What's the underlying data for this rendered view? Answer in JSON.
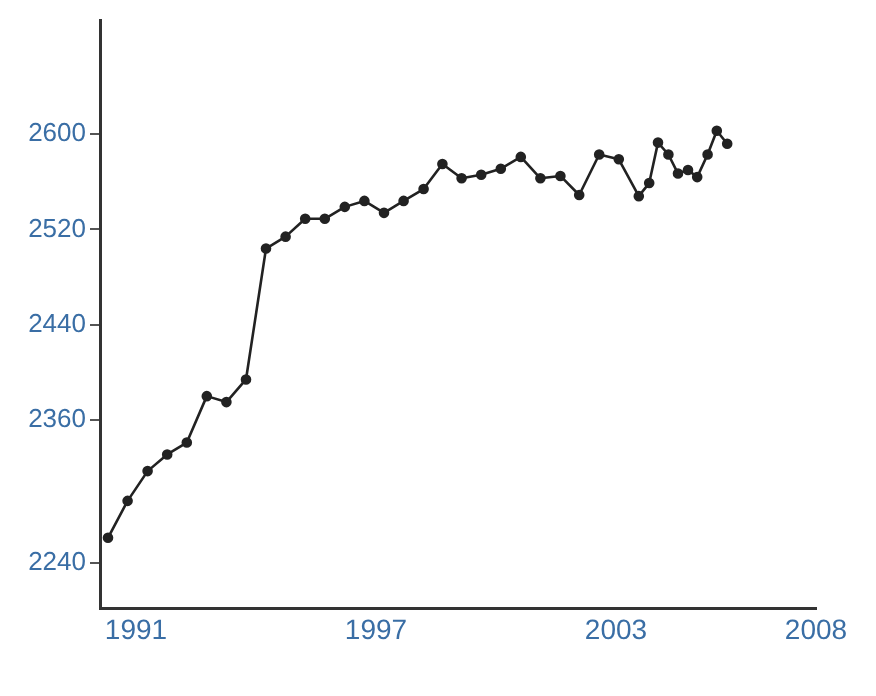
{
  "chart_data": {
    "type": "line",
    "marker": "circle",
    "color": "#222222",
    "x": [
      1990.3,
      1990.79,
      1991.29,
      1991.78,
      1992.27,
      1992.77,
      1993.26,
      1993.75,
      1994.25,
      1994.74,
      1995.23,
      1995.72,
      1996.22,
      1996.71,
      1997.2,
      1997.69,
      1998.19,
      1998.66,
      1999.14,
      1999.63,
      2000.12,
      2000.62,
      2001.11,
      2001.61,
      2002.08,
      2002.58,
      2003.07,
      2003.57,
      2003.83,
      2004.05,
      2004.31,
      2004.55,
      2004.8,
      2005.03,
      2005.29,
      2005.52,
      2005.78
    ],
    "values": [
      2261,
      2292,
      2317,
      2331,
      2341,
      2380,
      2375,
      2394,
      2504,
      2514,
      2529,
      2529,
      2539,
      2544,
      2534,
      2544,
      2554,
      2575,
      2563,
      2566,
      2571,
      2581,
      2563,
      2565,
      2549,
      2583,
      2579,
      2548,
      2559,
      2593,
      2583,
      2567,
      2570,
      2564,
      2583,
      2603,
      2592
    ],
    "xlim": [
      1990.1,
      2008
    ],
    "xticks": [
      1991,
      1997,
      2003,
      2008
    ],
    "ylim": [
      2202,
      2696
    ],
    "yticks": [
      2240,
      2360,
      2440,
      2520,
      2600
    ]
  }
}
